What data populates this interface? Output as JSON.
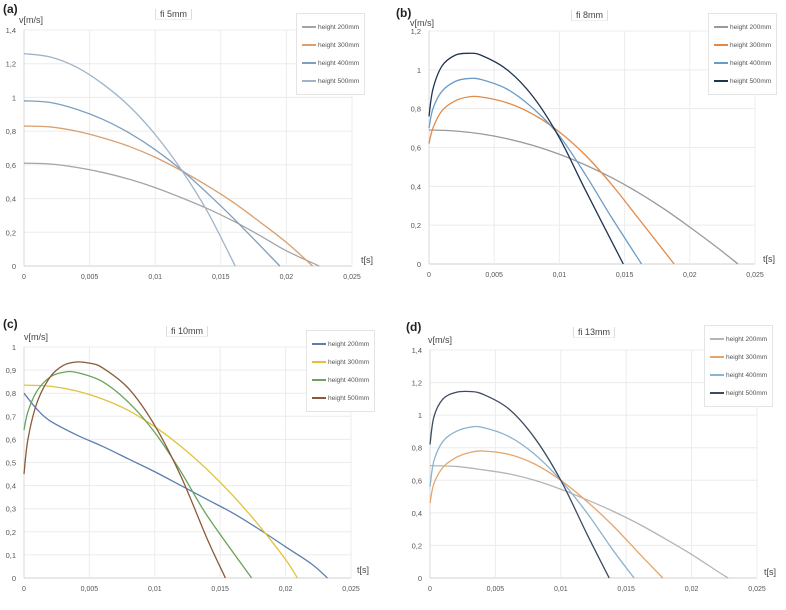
{
  "chart_data": [
    {
      "id": "a",
      "panel_label": "(a)",
      "type": "line",
      "title": "fi 5mm",
      "xlabel": "t[s]",
      "ylabel": "v[m/s]",
      "xlim": [
        0,
        0.025
      ],
      "ylim": [
        0,
        1.4
      ],
      "xticks": [
        0,
        0.005,
        0.01,
        0.015,
        0.02,
        0.025
      ],
      "xtick_labels": [
        "0",
        "0,005",
        "0,01",
        "0,015",
        "0,02",
        "0,025"
      ],
      "yticks": [
        0,
        0.2,
        0.4,
        0.6,
        0.8,
        1,
        1.2,
        1.4
      ],
      "ytick_labels": [
        "0",
        "0,2",
        "0,4",
        "0,6",
        "0,8",
        "1",
        "1,2",
        "1,4"
      ],
      "grid": true,
      "legend_position": "top-right",
      "series": [
        {
          "name": "height 200mm",
          "color": "#a5a5a5",
          "x": [
            0,
            0.002,
            0.004,
            0.006,
            0.008,
            0.01,
            0.012,
            0.014,
            0.016,
            0.018,
            0.02,
            0.0225
          ],
          "y": [
            0.61,
            0.605,
            0.585,
            0.555,
            0.515,
            0.465,
            0.405,
            0.34,
            0.265,
            0.18,
            0.09,
            0
          ]
        },
        {
          "name": "height 300mm",
          "color": "#d9a070",
          "x": [
            0,
            0.002,
            0.004,
            0.006,
            0.008,
            0.01,
            0.012,
            0.014,
            0.016,
            0.018,
            0.02,
            0.022
          ],
          "y": [
            0.83,
            0.825,
            0.8,
            0.76,
            0.71,
            0.645,
            0.565,
            0.475,
            0.375,
            0.26,
            0.14,
            0
          ]
        },
        {
          "name": "height 400mm",
          "color": "#7f9fbf",
          "x": [
            0,
            0.002,
            0.004,
            0.006,
            0.008,
            0.01,
            0.012,
            0.014,
            0.016,
            0.0195
          ],
          "y": [
            0.98,
            0.97,
            0.93,
            0.87,
            0.79,
            0.69,
            0.57,
            0.43,
            0.28,
            0
          ]
        },
        {
          "name": "height 500mm",
          "color": "#9fb4c9",
          "x": [
            0,
            0.002,
            0.004,
            0.006,
            0.008,
            0.01,
            0.012,
            0.014,
            0.0161
          ],
          "y": [
            1.26,
            1.24,
            1.18,
            1.08,
            0.95,
            0.78,
            0.57,
            0.32,
            0
          ]
        }
      ]
    },
    {
      "id": "b",
      "panel_label": "(b)",
      "type": "line",
      "title": "fi 8mm",
      "xlabel": "t[s]",
      "ylabel": "v[m/s]",
      "xlim": [
        0,
        0.025
      ],
      "ylim": [
        0,
        1.2
      ],
      "xticks": [
        0,
        0.005,
        0.01,
        0.015,
        0.02,
        0.025
      ],
      "xtick_labels": [
        "0",
        "0,005",
        "0,01",
        "0,015",
        "0,02",
        "0,025"
      ],
      "yticks": [
        0,
        0.2,
        0.4,
        0.6,
        0.8,
        1,
        1.2
      ],
      "ytick_labels": [
        "0",
        "0,2",
        "0,4",
        "0,6",
        "0,8",
        "1",
        "1,2"
      ],
      "grid": true,
      "legend_position": "top-right",
      "series": [
        {
          "name": "height 200mm",
          "color": "#9a9a9a",
          "x": [
            0,
            0.002,
            0.004,
            0.006,
            0.008,
            0.01,
            0.012,
            0.014,
            0.016,
            0.018,
            0.02,
            0.022,
            0.0237
          ],
          "y": [
            0.69,
            0.685,
            0.67,
            0.645,
            0.61,
            0.565,
            0.51,
            0.445,
            0.37,
            0.285,
            0.19,
            0.09,
            0
          ]
        },
        {
          "name": "height 300mm",
          "color": "#e08a4a",
          "x": [
            0,
            0.0003,
            0.001,
            0.002,
            0.003,
            0.004,
            0.006,
            0.008,
            0.01,
            0.012,
            0.014,
            0.016,
            0.0188
          ],
          "y": [
            0.62,
            0.7,
            0.79,
            0.84,
            0.86,
            0.86,
            0.83,
            0.77,
            0.68,
            0.56,
            0.41,
            0.24,
            0
          ]
        },
        {
          "name": "height 400mm",
          "color": "#6a9cc8",
          "x": [
            0,
            0.0003,
            0.001,
            0.002,
            0.003,
            0.004,
            0.006,
            0.008,
            0.01,
            0.012,
            0.014,
            0.0163
          ],
          "y": [
            0.7,
            0.8,
            0.89,
            0.94,
            0.955,
            0.95,
            0.9,
            0.8,
            0.66,
            0.46,
            0.24,
            0
          ]
        },
        {
          "name": "height 500mm",
          "color": "#1f3350",
          "x": [
            0,
            0.0003,
            0.001,
            0.002,
            0.003,
            0.004,
            0.006,
            0.008,
            0.01,
            0.012,
            0.0149
          ],
          "y": [
            0.76,
            0.9,
            1.02,
            1.075,
            1.085,
            1.075,
            1.0,
            0.86,
            0.65,
            0.38,
            0
          ]
        }
      ]
    },
    {
      "id": "c",
      "panel_label": "(c)",
      "type": "line",
      "title": "fi 10mm",
      "xlabel": "t[s]",
      "ylabel": "v[m/s]",
      "xlim": [
        0,
        0.025
      ],
      "ylim": [
        0,
        1
      ],
      "xticks": [
        0,
        0.005,
        0.01,
        0.015,
        0.02,
        0.025
      ],
      "xtick_labels": [
        "0",
        "0,005",
        "0,01",
        "0,015",
        "0,02",
        "0,025"
      ],
      "yticks": [
        0,
        0.1,
        0.2,
        0.3,
        0.4,
        0.5,
        0.6,
        0.7,
        0.8,
        0.9,
        1
      ],
      "ytick_labels": [
        "0",
        "0,1",
        "0,2",
        "0,3",
        "0,4",
        "0,5",
        "0,6",
        "0,7",
        "0,8",
        "0,9",
        "1"
      ],
      "grid": true,
      "legend_position": "top-right",
      "series": [
        {
          "name": "height 200mm",
          "color": "#5b7fb0",
          "x": [
            0,
            0.001,
            0.002,
            0.004,
            0.006,
            0.008,
            0.01,
            0.012,
            0.014,
            0.016,
            0.018,
            0.02,
            0.022,
            0.0232
          ],
          "y": [
            0.8,
            0.73,
            0.68,
            0.62,
            0.57,
            0.515,
            0.46,
            0.4,
            0.34,
            0.28,
            0.21,
            0.135,
            0.06,
            0
          ]
        },
        {
          "name": "height 300mm",
          "color": "#e2c23a",
          "x": [
            0,
            0.002,
            0.004,
            0.006,
            0.008,
            0.01,
            0.012,
            0.014,
            0.016,
            0.018,
            0.02,
            0.0209
          ],
          "y": [
            0.835,
            0.83,
            0.81,
            0.775,
            0.725,
            0.655,
            0.57,
            0.47,
            0.355,
            0.225,
            0.08,
            0
          ]
        },
        {
          "name": "height 400mm",
          "color": "#6aa35a",
          "x": [
            0,
            0.0003,
            0.001,
            0.002,
            0.003,
            0.004,
            0.006,
            0.008,
            0.01,
            0.012,
            0.014,
            0.0174
          ],
          "y": [
            0.64,
            0.72,
            0.81,
            0.87,
            0.89,
            0.89,
            0.85,
            0.76,
            0.63,
            0.46,
            0.27,
            0
          ]
        },
        {
          "name": "height 500mm",
          "color": "#8a5a3a",
          "x": [
            0,
            0.0003,
            0.001,
            0.002,
            0.003,
            0.004,
            0.005,
            0.006,
            0.008,
            0.01,
            0.012,
            0.014,
            0.0154
          ],
          "y": [
            0.45,
            0.6,
            0.76,
            0.87,
            0.92,
            0.935,
            0.93,
            0.91,
            0.82,
            0.66,
            0.44,
            0.17,
            0
          ]
        }
      ]
    },
    {
      "id": "d",
      "panel_label": "(d)",
      "type": "line",
      "title": "fi 13mm",
      "xlabel": "t[s]",
      "ylabel": "v[m/s]",
      "xlim": [
        0,
        0.025
      ],
      "ylim": [
        0,
        1.4
      ],
      "xticks": [
        0,
        0.005,
        0.01,
        0.015,
        0.02,
        0.025
      ],
      "xtick_labels": [
        "0",
        "0,005",
        "0,01",
        "0,015",
        "0,02",
        "0,025"
      ],
      "yticks": [
        0,
        0.2,
        0.4,
        0.6,
        0.8,
        1,
        1.2,
        1.4
      ],
      "ytick_labels": [
        "0",
        "0,2",
        "0,4",
        "0,6",
        "0,8",
        "1",
        "1,2",
        "1,4"
      ],
      "grid": true,
      "legend_position": "top-right",
      "series": [
        {
          "name": "height 200mm",
          "color": "#b5b5b5",
          "x": [
            0,
            0.002,
            0.004,
            0.006,
            0.008,
            0.01,
            0.012,
            0.014,
            0.016,
            0.018,
            0.02,
            0.022,
            0.0228
          ],
          "y": [
            0.69,
            0.685,
            0.665,
            0.64,
            0.6,
            0.545,
            0.48,
            0.41,
            0.33,
            0.24,
            0.145,
            0.04,
            0
          ]
        },
        {
          "name": "height 300mm",
          "color": "#e6a56a",
          "x": [
            0,
            0.0003,
            0.001,
            0.002,
            0.003,
            0.004,
            0.006,
            0.008,
            0.01,
            0.012,
            0.014,
            0.016,
            0.0178
          ],
          "y": [
            0.46,
            0.58,
            0.68,
            0.74,
            0.77,
            0.78,
            0.76,
            0.7,
            0.6,
            0.47,
            0.32,
            0.15,
            0
          ]
        },
        {
          "name": "height 400mm",
          "color": "#8bb4d0",
          "x": [
            0,
            0.0003,
            0.001,
            0.002,
            0.003,
            0.004,
            0.006,
            0.008,
            0.01,
            0.012,
            0.014,
            0.0156
          ],
          "y": [
            0.56,
            0.72,
            0.84,
            0.9,
            0.925,
            0.925,
            0.87,
            0.76,
            0.6,
            0.4,
            0.17,
            0
          ]
        },
        {
          "name": "height 500mm",
          "color": "#3d4a60",
          "x": [
            0,
            0.0003,
            0.001,
            0.002,
            0.003,
            0.004,
            0.006,
            0.008,
            0.01,
            0.012,
            0.0137
          ],
          "y": [
            0.82,
            0.99,
            1.1,
            1.14,
            1.145,
            1.13,
            1.04,
            0.86,
            0.6,
            0.27,
            0
          ]
        }
      ]
    }
  ]
}
